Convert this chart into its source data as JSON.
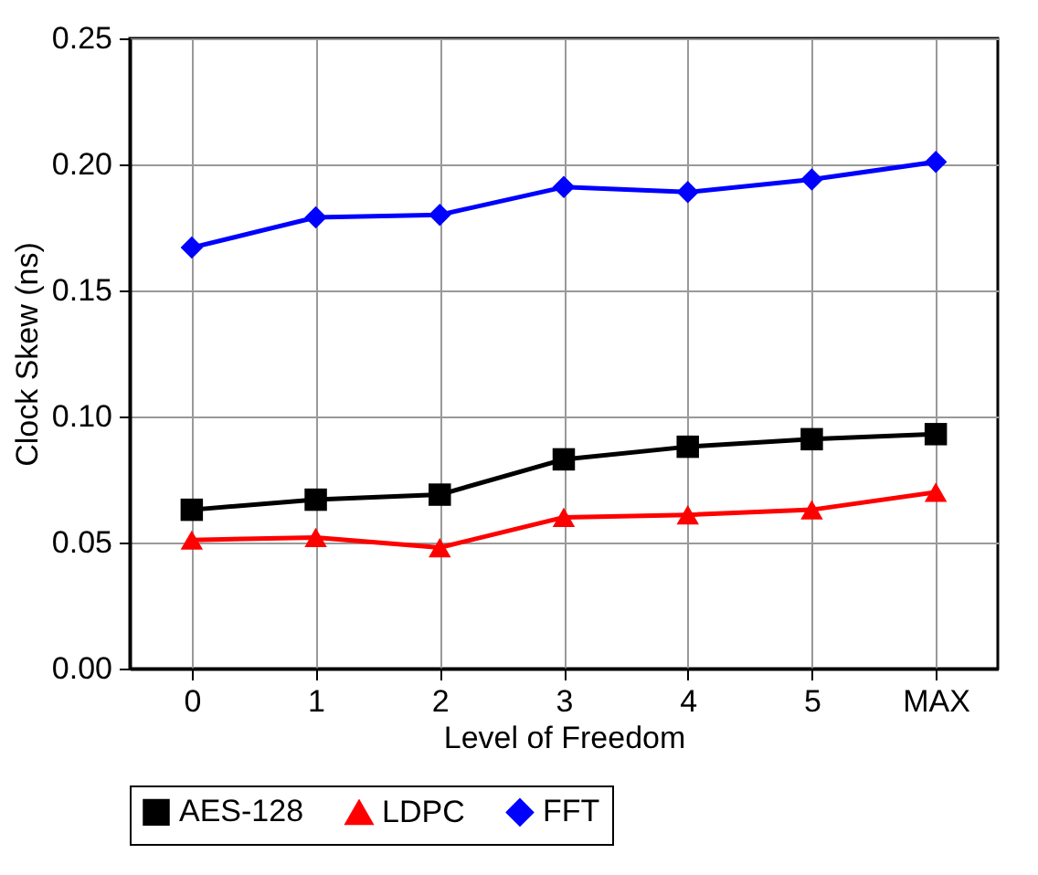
{
  "chart_data": {
    "type": "line",
    "xlabel": "Level of Freedom",
    "ylabel": "Clock Skew (ns)",
    "categories": [
      "0",
      "1",
      "2",
      "3",
      "4",
      "5",
      "MAX"
    ],
    "series": [
      {
        "name": "AES-128",
        "color": "#000000",
        "marker": "square",
        "values": [
          0.063,
          0.067,
          0.069,
          0.083,
          0.088,
          0.091,
          0.093
        ]
      },
      {
        "name": "LDPC",
        "color": "#ff0000",
        "marker": "triangle",
        "values": [
          0.051,
          0.052,
          0.048,
          0.06,
          0.061,
          0.063,
          0.07
        ]
      },
      {
        "name": "FFT",
        "color": "#0000ff",
        "marker": "diamond",
        "values": [
          0.167,
          0.179,
          0.18,
          0.191,
          0.189,
          0.194,
          0.201
        ]
      }
    ],
    "ylim": [
      0,
      0.25
    ],
    "yticks": [
      {
        "value": 0,
        "label": "0.00"
      },
      {
        "value": 0.05,
        "label": "0.05"
      },
      {
        "value": 0.1,
        "label": "0.10"
      },
      {
        "value": 0.15,
        "label": "0.15"
      },
      {
        "value": 0.2,
        "label": "0.20"
      },
      {
        "value": 0.25,
        "label": "0.25"
      }
    ],
    "grid": true,
    "legend": "bottom",
    "line_style": "solid"
  }
}
